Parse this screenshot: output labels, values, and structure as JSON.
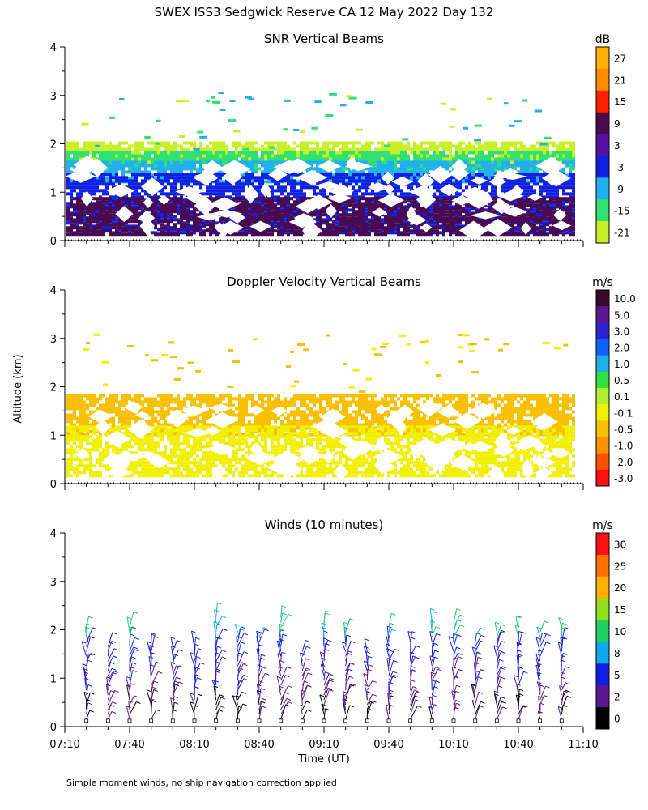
{
  "figure": {
    "title": "SWEX ISS3 Sedgwick Reserve CA  12 May 2022 Day 132",
    "y_axis_label": "Altitude (km)",
    "x_axis_label": "Time (UT)",
    "footnote": "Simple moment winds, no ship navigation correction applied",
    "x_tick_labels": [
      "07:10",
      "07:40",
      "08:10",
      "08:40",
      "09:10",
      "09:40",
      "10:10",
      "10:40",
      "11:10"
    ]
  },
  "chart_data": [
    {
      "type": "heatmap",
      "title": "SNR Vertical Beams",
      "xlabel": "",
      "ylabel": "Altitude (km)",
      "xlim": [
        "07:10",
        "11:10"
      ],
      "ylim": [
        0,
        4
      ],
      "y_ticks": [
        0,
        1,
        2,
        3,
        4
      ],
      "colorbar": {
        "unit": "dB",
        "labels": [
          "27",
          "21",
          "15",
          "9",
          "3",
          "-3",
          "-9",
          "-15",
          "-21"
        ],
        "colors": [
          "#ffb000",
          "#ff8c00",
          "#ff2000",
          "#4a0a50",
          "#5a10a0",
          "#1020e0",
          "#20b0f0",
          "#30e070",
          "#c8f028"
        ]
      },
      "bands": [
        {
          "name": "",
          "level": "-21",
          "color": "#c8f028",
          "base_km": 1.6,
          "top_km": 2.05
        },
        {
          "name": "",
          "level": "-15",
          "color": "#30e070",
          "base_km": 1.5,
          "top_km": 1.85
        },
        {
          "name": "",
          "level": "-9",
          "color": "#20b0f0",
          "base_km": 1.2,
          "top_km": 1.65
        },
        {
          "name": "",
          "level": "-3",
          "color": "#1020e0",
          "base_km": 0.15,
          "top_km": 1.4
        },
        {
          "name": "",
          "level": "9",
          "color": "#4a0a50",
          "base_km": 0.15,
          "top_km": 0.9
        }
      ]
    },
    {
      "type": "heatmap",
      "title": "Doppler Velocity Vertical Beams",
      "xlabel": "",
      "ylabel": "Altitude (km)",
      "xlim": [
        "07:10",
        "11:10"
      ],
      "ylim": [
        0,
        4
      ],
      "y_ticks": [
        0,
        1,
        2,
        3,
        4
      ],
      "colorbar": {
        "unit": "m/s",
        "labels": [
          "10.0",
          "5.0",
          "3.0",
          "2.0",
          "1.0",
          "0.5",
          "0.1",
          "-0.1",
          "-0.5",
          "-1.0",
          "-2.0",
          "-3.0"
        ],
        "colors": [
          "#3a0828",
          "#5a1890",
          "#3020d0",
          "#1060ff",
          "#20b0e8",
          "#30e040",
          "#b0f030",
          "#f0f000",
          "#f8c000",
          "#ff9000",
          "#ff5000",
          "#ff1010"
        ]
      },
      "bands": [
        {
          "name": "",
          "level": "-0.5",
          "color": "#f8c000",
          "base_km": 1.0,
          "top_km": 1.85
        },
        {
          "name": "",
          "level": "-0.1",
          "color": "#f0f000",
          "base_km": 0.15,
          "top_km": 1.2
        }
      ]
    },
    {
      "type": "scatter",
      "title": "Winds (10 minutes)",
      "xlabel": "Time (UT)",
      "ylabel": "Altitude (km)",
      "xlim": [
        "07:10",
        "11:10"
      ],
      "ylim": [
        0,
        4
      ],
      "y_ticks": [
        0,
        1,
        2,
        3,
        4
      ],
      "colorbar": {
        "unit": "m/s",
        "labels": [
          "30",
          "25",
          "20",
          "15",
          "10",
          "8",
          "5",
          "2",
          "0"
        ],
        "colors": [
          "#ff1010",
          "#ff7000",
          "#ffb000",
          "#90e020",
          "#20d060",
          "#10a8f0",
          "#1020e0",
          "#5a1890",
          "#000000"
        ]
      },
      "profile_times": [
        "07:20",
        "07:30",
        "07:40",
        "07:50",
        "08:00",
        "08:10",
        "08:20",
        "08:30",
        "08:40",
        "08:50",
        "09:00",
        "09:10",
        "09:20",
        "09:30",
        "09:40",
        "09:50",
        "10:00",
        "10:10",
        "10:20",
        "10:30",
        "10:40",
        "10:50",
        "11:00"
      ]
    }
  ]
}
